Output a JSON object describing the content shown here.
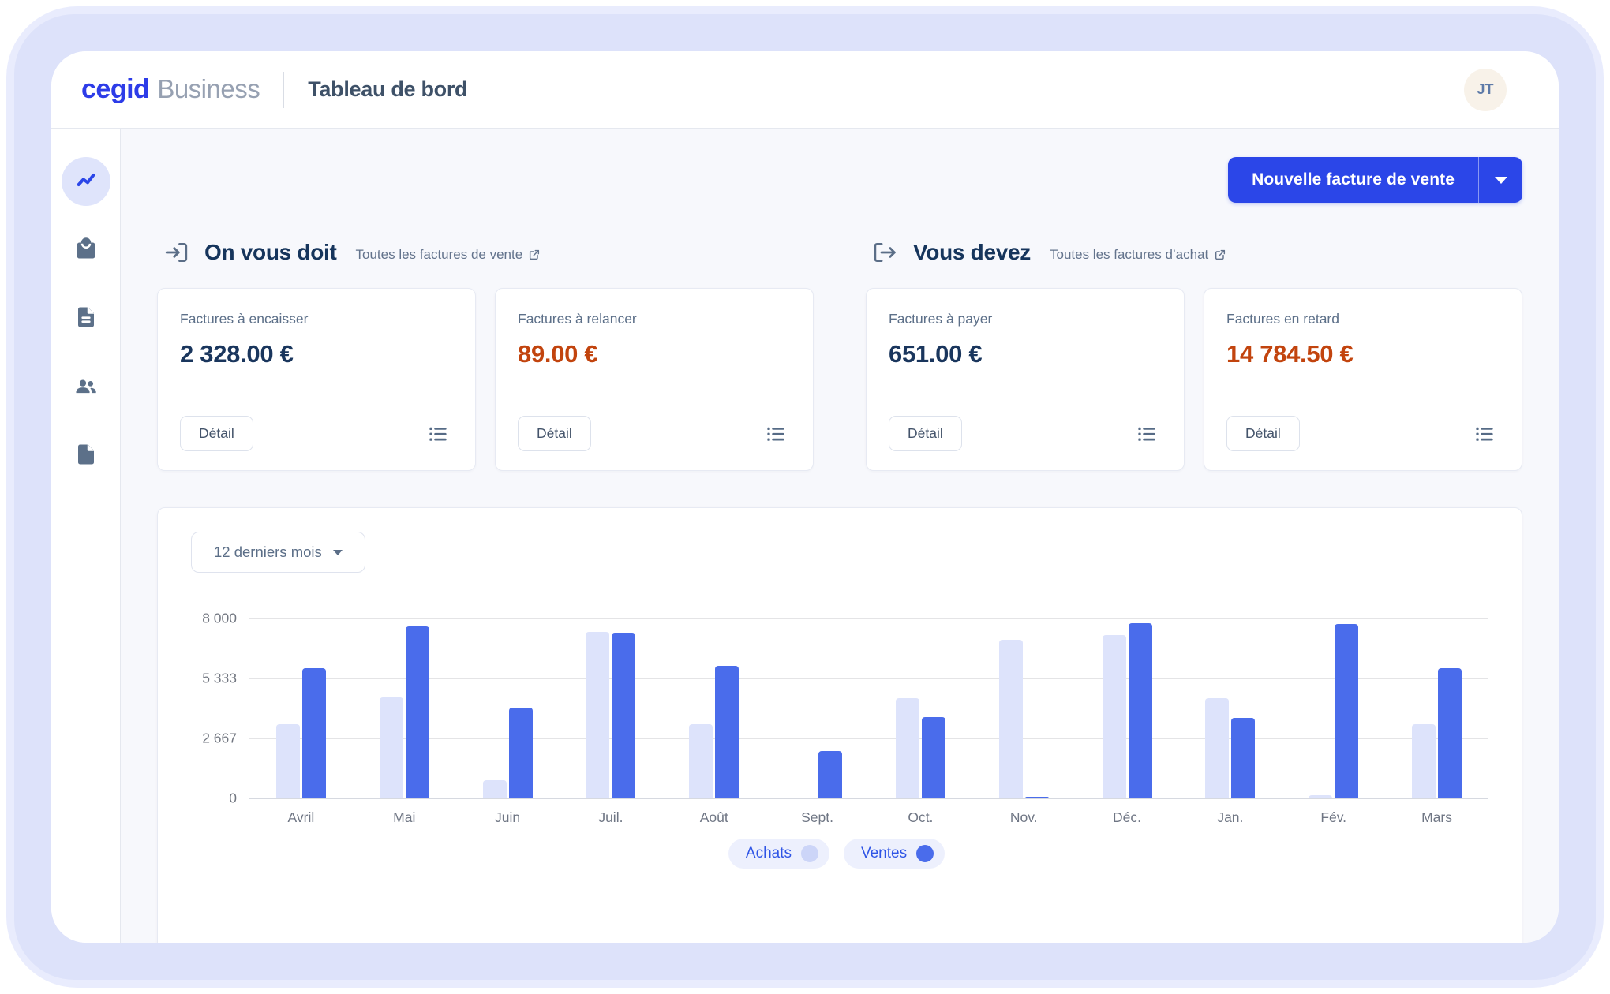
{
  "header": {
    "logo_primary": "cegid",
    "logo_secondary": "Business",
    "page_title": "Tableau de bord",
    "avatar_initials": "JT"
  },
  "sidebar": {
    "items": [
      {
        "icon": "line-chart-icon",
        "active": true
      },
      {
        "icon": "shopping-bag-icon",
        "active": false
      },
      {
        "icon": "document-lines-icon",
        "active": false
      },
      {
        "icon": "users-icon",
        "active": false
      },
      {
        "icon": "document-icon",
        "active": false
      }
    ]
  },
  "toolbar": {
    "new_invoice_label": "Nouvelle facture de vente"
  },
  "sections": [
    {
      "title": "On vous doit",
      "icon": "arrow-into-bracket-icon",
      "link_label": "Toutes les factures de vente",
      "cards": [
        {
          "label": "Factures à encaisser",
          "value": "2 328.00 €",
          "value_color": "#1a365d",
          "detail_label": "Détail"
        },
        {
          "label": "Factures à relancer",
          "value": "89.00 €",
          "value_color": "#c2440e",
          "detail_label": "Détail"
        }
      ]
    },
    {
      "title": "Vous devez",
      "icon": "arrow-out-of-bracket-icon",
      "link_label": "Toutes les factures d’achat",
      "cards": [
        {
          "label": "Factures à payer",
          "value": "651.00 €",
          "value_color": "#1a365d",
          "detail_label": "Détail"
        },
        {
          "label": "Factures en retard",
          "value": "14 784.50 €",
          "value_color": "#c2440e",
          "detail_label": "Détail"
        }
      ]
    }
  ],
  "chart": {
    "period_label": "12 derniers mois"
  },
  "chart_data": {
    "type": "bar",
    "title": "",
    "xlabel": "",
    "ylabel": "",
    "categories": [
      "Avril",
      "Mai",
      "Juin",
      "Juil.",
      "Août",
      "Sept.",
      "Oct.",
      "Nov.",
      "Déc.",
      "Jan.",
      "Fév.",
      "Mars"
    ],
    "series": [
      {
        "name": "Achats",
        "color": "#dde3fb",
        "legend_dot_color": "#ccd5f8",
        "values": [
          3300,
          4500,
          800,
          7400,
          3300,
          0,
          4450,
          7050,
          7250,
          4470,
          150,
          3300
        ]
      },
      {
        "name": "Ventes",
        "color": "#4a6ceb",
        "legend_dot_color": "#4a6ceb",
        "values": [
          5800,
          7650,
          4050,
          7350,
          5900,
          2100,
          3600,
          60,
          7800,
          3570,
          7750,
          5800
        ]
      }
    ],
    "ylim": [
      0,
      8000
    ],
    "ytick_labels": [
      "8 000",
      "5 333",
      "2 667",
      "0"
    ],
    "grid": true,
    "legend_position": "bottom"
  },
  "colors": {
    "accent_blue": "#2b46e8",
    "navy_value": "#1a365d",
    "danger_orange": "#c2440e",
    "backdrop_lavender": "#dde2fa",
    "main_background": "#f7f8fc"
  }
}
